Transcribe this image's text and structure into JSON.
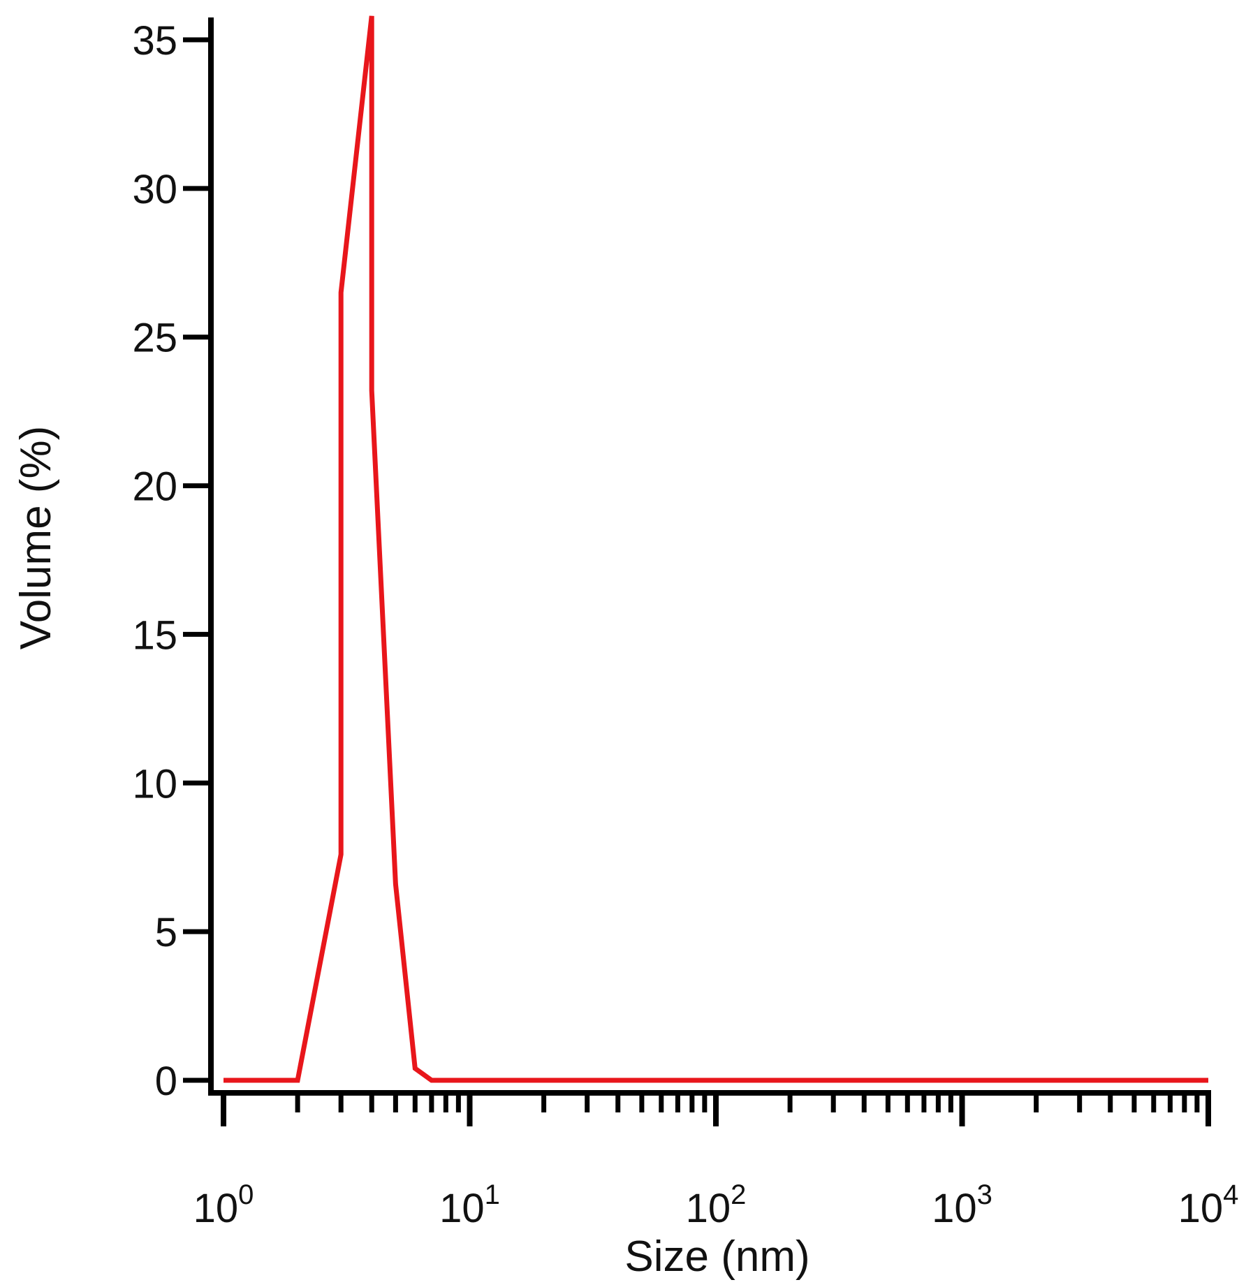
{
  "chart_data": {
    "type": "line",
    "xlabel": "Size (nm)",
    "ylabel": "Volume (%)",
    "x_scale": "log",
    "xlim": [
      1,
      10000
    ],
    "ylim": [
      0,
      35
    ],
    "x_ticks": [
      {
        "base": "10",
        "exp": "0",
        "value": 1
      },
      {
        "base": "10",
        "exp": "1",
        "value": 10
      },
      {
        "base": "10",
        "exp": "2",
        "value": 100
      },
      {
        "base": "10",
        "exp": "3",
        "value": 1000
      },
      {
        "base": "10",
        "exp": "4",
        "value": 10000
      }
    ],
    "y_ticks": [
      "0",
      "5",
      "10",
      "15",
      "20",
      "25",
      "30",
      "35"
    ],
    "grid": false,
    "series": [
      {
        "color": "#e8161b",
        "x": [
          1,
          2,
          3,
          3,
          4,
          4,
          5,
          6,
          7,
          10,
          100,
          1000,
          10000
        ],
        "y": [
          0,
          0,
          7.6,
          26.5,
          35.8,
          23.2,
          6.6,
          0.4,
          0,
          0,
          0,
          0,
          0
        ]
      }
    ]
  }
}
